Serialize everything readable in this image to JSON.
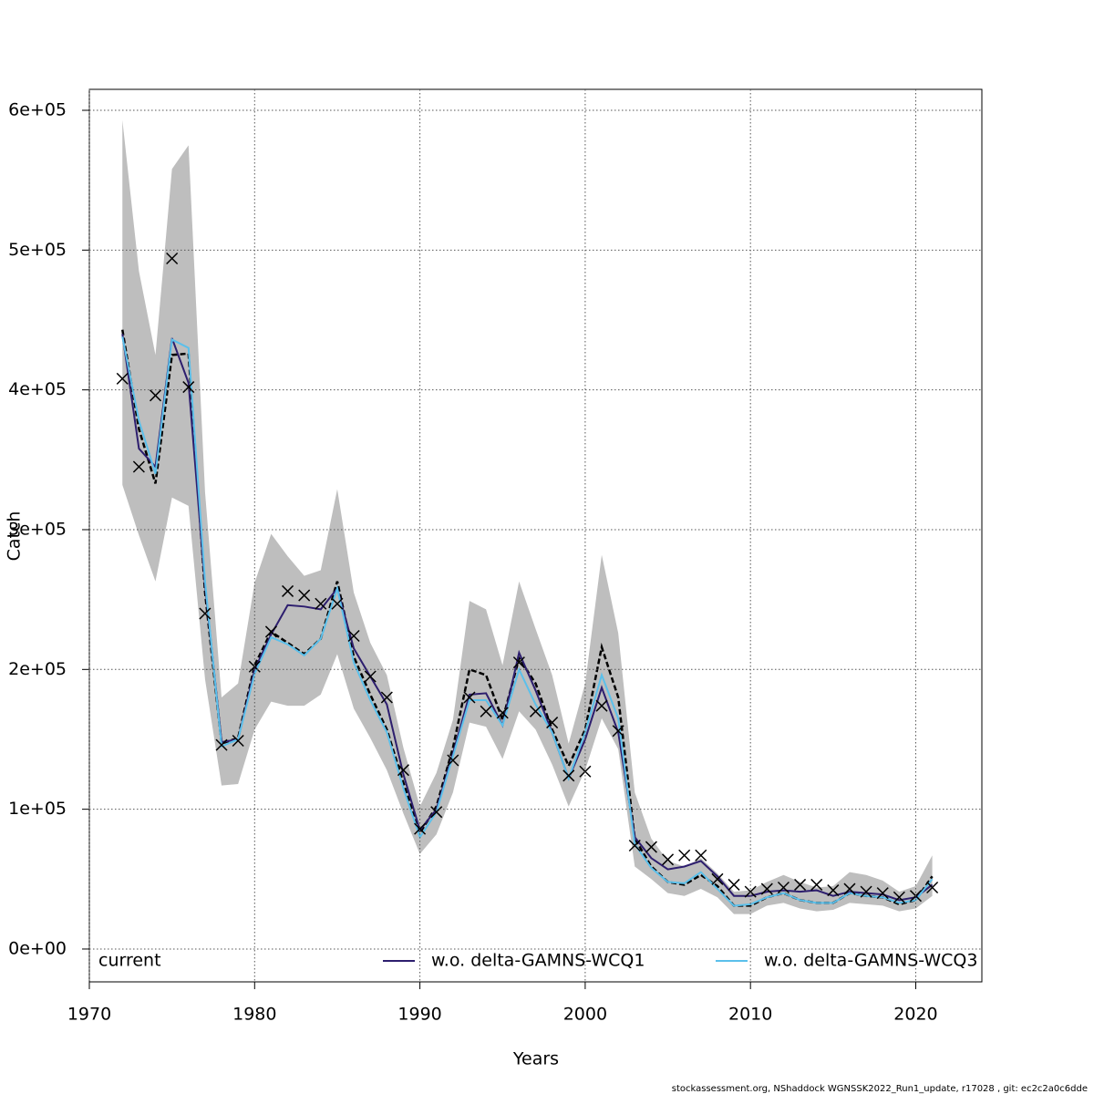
{
  "chart_data": {
    "type": "line",
    "x_label": "Years",
    "y_label": "Catch",
    "footer": "stockassessment.org, NShaddock  WGNSSK2022_Run1_update, r17028 , git: ec2c2a0c6dde",
    "xlim": [
      1970,
      2024
    ],
    "ylim": [
      -23500,
      615000
    ],
    "xticks": [
      1970,
      1980,
      1990,
      2000,
      2010,
      2020
    ],
    "yticks": [
      {
        "value": 0,
        "label": "0e+00"
      },
      {
        "value": 100000,
        "label": "1e+05"
      },
      {
        "value": 200000,
        "label": "2e+05"
      },
      {
        "value": 300000,
        "label": "3e+05"
      },
      {
        "value": 400000,
        "label": "4e+05"
      },
      {
        "value": 500000,
        "label": "5e+05"
      },
      {
        "value": 600000,
        "label": "6e+05"
      }
    ],
    "grid": true,
    "legend": "bottom",
    "band_color": "#bebebe",
    "x": [
      1972,
      1973,
      1974,
      1975,
      1976,
      1977,
      1978,
      1979,
      1980,
      1981,
      1982,
      1983,
      1984,
      1985,
      1986,
      1987,
      1988,
      1989,
      1990,
      1991,
      1992,
      1993,
      1994,
      1995,
      1996,
      1997,
      1998,
      1999,
      2000,
      2001,
      2002,
      2003,
      2004,
      2005,
      2006,
      2007,
      2008,
      2009,
      2010,
      2011,
      2012,
      2013,
      2014,
      2015,
      2016,
      2017,
      2018,
      2019,
      2020,
      2021
    ],
    "ci_upper": [
      593000,
      485000,
      425000,
      558000,
      575000,
      327000,
      180000,
      190000,
      262000,
      297000,
      281000,
      267000,
      271000,
      329000,
      255000,
      219000,
      196000,
      144000,
      102000,
      126000,
      164000,
      249000,
      243000,
      203000,
      263000,
      229000,
      196000,
      147000,
      190000,
      282000,
      226000,
      112000,
      79000,
      63000,
      59000,
      65000,
      54000,
      41000,
      42000,
      48000,
      53000,
      48000,
      44000,
      45000,
      55000,
      53000,
      49000,
      41000,
      45000,
      67000
    ],
    "ci_lower": [
      332000,
      296000,
      263000,
      323000,
      317000,
      193000,
      117000,
      118000,
      157000,
      177000,
      174000,
      174000,
      182000,
      211000,
      172000,
      151000,
      128000,
      97000,
      68000,
      82000,
      112000,
      162000,
      159000,
      136000,
      170000,
      157000,
      132000,
      102000,
      128000,
      165000,
      143000,
      59000,
      50000,
      40000,
      38000,
      43000,
      37000,
      25000,
      25000,
      31000,
      33000,
      29000,
      27000,
      28000,
      33000,
      32000,
      31000,
      27000,
      29000,
      38000
    ],
    "observed": [
      408000,
      345000,
      396000,
      494000,
      402000,
      240000,
      146000,
      149000,
      202000,
      227000,
      256000,
      253000,
      247000,
      247000,
      224000,
      195000,
      180000,
      128000,
      86000,
      98000,
      135000,
      180000,
      170000,
      169000,
      205000,
      170000,
      162000,
      124000,
      127000,
      174000,
      156000,
      74000,
      73000,
      64000,
      67000,
      67000,
      50000,
      46000,
      41000,
      43000,
      44000,
      46000,
      46000,
      42000,
      43000,
      41000,
      40000,
      37000,
      38000,
      44000
    ],
    "series": [
      {
        "name": "current",
        "color": "#000000",
        "values": [
          443000,
          372000,
          333000,
          425000,
          426000,
          255000,
          147000,
          151000,
          203000,
          227000,
          219000,
          211000,
          222000,
          263000,
          209000,
          182000,
          157000,
          119000,
          83000,
          102000,
          144000,
          200000,
          196000,
          164000,
          208000,
          190000,
          157000,
          131000,
          157000,
          216000,
          180000,
          79000,
          59000,
          48000,
          46000,
          53000,
          45000,
          31000,
          31000,
          37000,
          40000,
          35000,
          33000,
          33000,
          40000,
          38000,
          37000,
          32000,
          35000,
          52000
        ]
      },
      {
        "name": "w.o. delta-GAMNS-WCQ1",
        "color": "#2d1e6e",
        "values": [
          440000,
          358000,
          345000,
          437000,
          405000,
          260000,
          148000,
          150000,
          200000,
          225000,
          246000,
          245000,
          243000,
          258000,
          215000,
          195000,
          175000,
          125000,
          85000,
          100000,
          140000,
          182000,
          183000,
          160000,
          212000,
          185000,
          155000,
          122000,
          150000,
          187000,
          155000,
          80000,
          65000,
          57000,
          59000,
          63000,
          52000,
          38000,
          38000,
          41000,
          42000,
          41000,
          42000,
          38000,
          41000,
          40000,
          39000,
          35000,
          37000,
          46000
        ]
      },
      {
        "name": "w.o. delta-GAMNS-WCQ3",
        "color": "#5bc0eb",
        "values": [
          438000,
          378000,
          340000,
          436000,
          430000,
          263000,
          145000,
          150000,
          197000,
          223000,
          218000,
          210000,
          222000,
          258000,
          205000,
          178000,
          155000,
          115000,
          80000,
          98000,
          138000,
          178000,
          178000,
          160000,
          200000,
          175000,
          155000,
          122000,
          155000,
          196000,
          165000,
          75000,
          58000,
          48000,
          47000,
          55000,
          43000,
          31000,
          32000,
          37000,
          40000,
          35000,
          33000,
          33000,
          40000,
          38000,
          37000,
          33000,
          35000,
          50000
        ]
      }
    ]
  }
}
